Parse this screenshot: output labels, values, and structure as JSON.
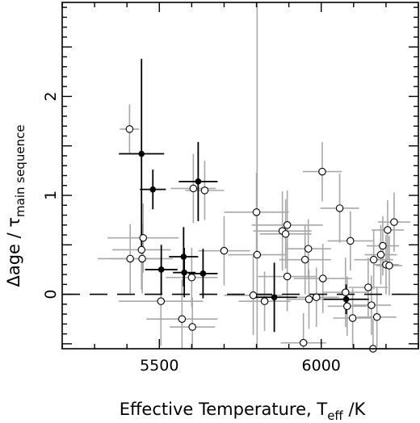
{
  "chart_data": {
    "type": "scatter",
    "xlabel": {
      "main": "Effective Temperature, T",
      "sub": "eff",
      "suffix": " /K"
    },
    "ylabel": {
      "delta": "Δ",
      "main": "age / τ",
      "sub": "main sequence"
    },
    "xlim": [
      5200,
      6300
    ],
    "ylim": [
      -0.55,
      2.95
    ],
    "x_ticks": [
      5500,
      6000
    ],
    "y_ticks": [
      0,
      1,
      2
    ],
    "reference_line": {
      "y": 0,
      "style": "dashed"
    },
    "grid": false,
    "legend": "none",
    "colors": {
      "open_points": "#000000",
      "open_errorbars": "#a8a8a8",
      "filled_points": "#000000",
      "filled_errorbars": "#000000"
    },
    "series": [
      {
        "marker": "open-circle",
        "points": [
          {
            "x": 5408,
            "y": 1.67,
            "xerr": 30,
            "yerr": 0.25
          },
          {
            "x": 5410,
            "y": 0.36,
            "xerr": 100,
            "yerr": 0.35
          },
          {
            "x": 5445,
            "y": 0.45,
            "xerr": 90,
            "yerr": 0.4
          },
          {
            "x": 5447,
            "y": 0.36,
            "xerr": 95,
            "yerr": 0.35
          },
          {
            "x": 5450,
            "y": 0.57,
            "xerr": 110,
            "yerr": 0.35
          },
          {
            "x": 5505,
            "y": -0.07,
            "xerr": 130,
            "yerr": 0.45
          },
          {
            "x": 5570,
            "y": -0.25,
            "xerr": 110,
            "yerr": 0.4
          },
          {
            "x": 5600,
            "y": 0.17,
            "xerr": 80,
            "yerr": 0.3
          },
          {
            "x": 5602,
            "y": -0.33,
            "xerr": 70,
            "yerr": 0.3
          },
          {
            "x": 5605,
            "y": 1.07,
            "xerr": 70,
            "yerr": 0.35
          },
          {
            "x": 5640,
            "y": 1.05,
            "xerr": 60,
            "yerr": 0.3
          },
          {
            "x": 5700,
            "y": 0.44,
            "xerr": 80,
            "yerr": 0.35
          },
          {
            "x": 5790,
            "y": -0.01,
            "xerr": 90,
            "yerr": 0.4
          },
          {
            "x": 5800,
            "y": 0.83,
            "xerr": 100,
            "yerr": 0.4
          },
          {
            "x": 5802,
            "y": 0.4,
            "xerr": 90,
            "yerr": 3.4
          },
          {
            "x": 5825,
            "y": -0.07,
            "xerr": 80,
            "yerr": 0.3
          },
          {
            "x": 5880,
            "y": 0.64,
            "xerr": 90,
            "yerr": 0.4
          },
          {
            "x": 5890,
            "y": 0.61,
            "xerr": 80,
            "yerr": 0.35
          },
          {
            "x": 5895,
            "y": 0.7,
            "xerr": 110,
            "yerr": 0.35
          },
          {
            "x": 5895,
            "y": 0.18,
            "xerr": 90,
            "yerr": 0.35
          },
          {
            "x": 5945,
            "y": -0.49,
            "xerr": 70,
            "yerr": 0.3
          },
          {
            "x": 5950,
            "y": 0.35,
            "xerr": 80,
            "yerr": 0.35
          },
          {
            "x": 5960,
            "y": 0.46,
            "xerr": 70,
            "yerr": 0.3
          },
          {
            "x": 5962,
            "y": -0.05,
            "xerr": 70,
            "yerr": 0.3
          },
          {
            "x": 5985,
            "y": -0.03,
            "xerr": 70,
            "yerr": 0.3
          },
          {
            "x": 6003,
            "y": 1.24,
            "xerr": 60,
            "yerr": 0.3
          },
          {
            "x": 6005,
            "y": 0.16,
            "xerr": 90,
            "yerr": 0.35
          },
          {
            "x": 6057,
            "y": 0.87,
            "xerr": 60,
            "yerr": 0.35
          },
          {
            "x": 6075,
            "y": 0.02,
            "xerr": 70,
            "yerr": 0.35
          },
          {
            "x": 6080,
            "y": -0.12,
            "xerr": 60,
            "yerr": 0.3
          },
          {
            "x": 6090,
            "y": 0.54,
            "xerr": 70,
            "yerr": 0.3
          },
          {
            "x": 6097,
            "y": -0.24,
            "xerr": 60,
            "yerr": 0.3
          },
          {
            "x": 6145,
            "y": 0.07,
            "xerr": 60,
            "yerr": 0.3
          },
          {
            "x": 6155,
            "y": -0.11,
            "xerr": 60,
            "yerr": 0.3
          },
          {
            "x": 6160,
            "y": -0.55,
            "xerr": 50,
            "yerr": 0.3
          },
          {
            "x": 6162,
            "y": 0.35,
            "xerr": 60,
            "yerr": 0.3
          },
          {
            "x": 6172,
            "y": -0.23,
            "xerr": 60,
            "yerr": 0.3
          },
          {
            "x": 6184,
            "y": 0.4,
            "xerr": 50,
            "yerr": 0.3
          },
          {
            "x": 6190,
            "y": 0.49,
            "xerr": 50,
            "yerr": 0.3
          },
          {
            "x": 6200,
            "y": 0.3,
            "xerr": 40,
            "yerr": 0.3
          },
          {
            "x": 6205,
            "y": 0.65,
            "xerr": 50,
            "yerr": 0.3
          },
          {
            "x": 6210,
            "y": 0.29,
            "xerr": 40,
            "yerr": 0.3
          },
          {
            "x": 6225,
            "y": 0.73,
            "xerr": 50,
            "yerr": 0.3
          }
        ]
      },
      {
        "marker": "filled-circle",
        "points": [
          {
            "x": 5445,
            "y": 1.42,
            "xerr": 70,
            "yerr": 0.96
          },
          {
            "x": 5480,
            "y": 1.06,
            "xerr": 40,
            "yerr": 0.2
          },
          {
            "x": 5506,
            "y": 0.25,
            "xerr": 50,
            "yerr": 0.25
          },
          {
            "x": 5575,
            "y": 0.38,
            "xerr": 45,
            "yerr": 0.3
          },
          {
            "x": 5577,
            "y": 0.22,
            "xerr": 35,
            "yerr": 0.25
          },
          {
            "x": 5620,
            "y": 1.14,
            "xerr": 60,
            "yerr": 0.4
          },
          {
            "x": 5635,
            "y": 0.21,
            "xerr": 45,
            "yerr": 0.25
          },
          {
            "x": 5855,
            "y": -0.03,
            "xerr": 70,
            "yerr": 0.35
          },
          {
            "x": 6077,
            "y": -0.05,
            "xerr": 70,
            "yerr": 0.15
          }
        ]
      }
    ]
  }
}
